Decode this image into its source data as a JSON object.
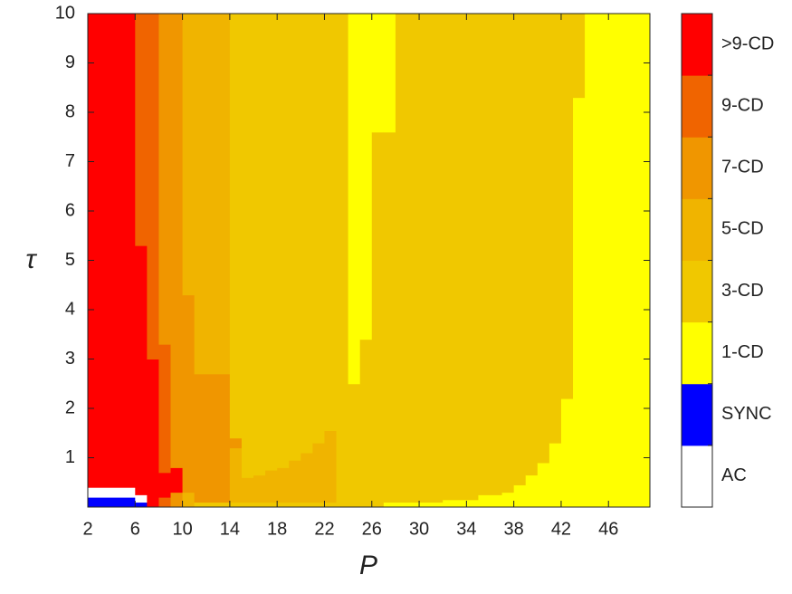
{
  "chart_data": {
    "type": "heatmap",
    "xlabel": "P",
    "ylabel": "τ",
    "xlim": [
      2,
      49.5
    ],
    "ylim": [
      0,
      10
    ],
    "xticks": [
      2,
      6,
      10,
      14,
      18,
      22,
      26,
      30,
      34,
      38,
      42,
      46
    ],
    "yticks": [
      1,
      2,
      3,
      4,
      5,
      6,
      7,
      8,
      9,
      10
    ],
    "level_names": [
      "AC",
      "SYNC",
      "1-CD",
      "3-CD",
      "5-CD",
      "7-CD",
      "9-CD",
      ">9-CD"
    ],
    "level_colors": [
      "#ffffff",
      "#0000ff",
      "#ffff00",
      "#f0c800",
      "#f0b400",
      "#f09600",
      "#f06400",
      "#ff0000"
    ],
    "columns": [
      {
        "x": [
          2,
          6
        ],
        "levels": [
          1,
          0,
          7
        ],
        "tops": [
          0.2,
          0.4,
          10
        ]
      },
      {
        "x": [
          6,
          7
        ],
        "levels": [
          1,
          0,
          7,
          6
        ],
        "tops": [
          0.1,
          0.25,
          5.3,
          10
        ]
      },
      {
        "x": [
          7,
          8
        ],
        "levels": [
          7,
          6
        ],
        "tops": [
          3.0,
          10
        ]
      },
      {
        "x": [
          8,
          9
        ],
        "levels": [
          6,
          7,
          6,
          5
        ],
        "tops": [
          0.2,
          0.7,
          3.3,
          10
        ]
      },
      {
        "x": [
          9,
          10
        ],
        "levels": [
          5,
          7,
          5
        ],
        "tops": [
          0.3,
          0.8,
          10
        ]
      },
      {
        "x": [
          10,
          11
        ],
        "levels": [
          4,
          5,
          4
        ],
        "tops": [
          0.3,
          4.3,
          10
        ]
      },
      {
        "x": [
          11,
          14
        ],
        "levels": [
          3,
          5,
          4
        ],
        "tops": [
          0.1,
          2.7,
          10
        ]
      },
      {
        "x": [
          14,
          15
        ],
        "levels": [
          3,
          4,
          5,
          3
        ],
        "tops": [
          0.1,
          1.2,
          1.4,
          10
        ]
      },
      {
        "x": [
          15,
          16
        ],
        "levels": [
          3,
          4,
          3
        ],
        "tops": [
          0.1,
          0.6,
          10
        ]
      },
      {
        "x": [
          16,
          17
        ],
        "levels": [
          3,
          4,
          3
        ],
        "tops": [
          0.1,
          0.65,
          10
        ]
      },
      {
        "x": [
          17,
          18
        ],
        "levels": [
          3,
          4,
          3
        ],
        "tops": [
          0.1,
          0.75,
          10
        ]
      },
      {
        "x": [
          18,
          19
        ],
        "levels": [
          3,
          4,
          3
        ],
        "tops": [
          0.1,
          0.8,
          10
        ]
      },
      {
        "x": [
          19,
          20
        ],
        "levels": [
          3,
          4,
          3
        ],
        "tops": [
          0.1,
          0.95,
          10
        ]
      },
      {
        "x": [
          20,
          21
        ],
        "levels": [
          3,
          4,
          3
        ],
        "tops": [
          0.1,
          1.1,
          10
        ]
      },
      {
        "x": [
          21,
          22
        ],
        "levels": [
          3,
          4,
          3
        ],
        "tops": [
          0.1,
          1.3,
          10
        ]
      },
      {
        "x": [
          22,
          23
        ],
        "levels": [
          3,
          4,
          3
        ],
        "tops": [
          0.1,
          1.55,
          10
        ]
      },
      {
        "x": [
          23,
          24
        ],
        "levels": [
          3
        ],
        "tops": [
          10
        ]
      },
      {
        "x": [
          24,
          25
        ],
        "levels": [
          3,
          2
        ],
        "tops": [
          2.5,
          10
        ]
      },
      {
        "x": [
          25,
          26
        ],
        "levels": [
          3,
          2
        ],
        "tops": [
          3.4,
          10
        ]
      },
      {
        "x": [
          26,
          27
        ],
        "levels": [
          3,
          2
        ],
        "tops": [
          7.6,
          10
        ]
      },
      {
        "x": [
          27,
          28
        ],
        "levels": [
          2,
          3,
          2
        ],
        "tops": [
          0.1,
          7.6,
          10
        ]
      },
      {
        "x": [
          28,
          32
        ],
        "levels": [
          2,
          3
        ],
        "tops": [
          0.1,
          10
        ]
      },
      {
        "x": [
          32,
          35
        ],
        "levels": [
          2,
          3
        ],
        "tops": [
          0.15,
          10
        ]
      },
      {
        "x": [
          35,
          37
        ],
        "levels": [
          2,
          3
        ],
        "tops": [
          0.25,
          10
        ]
      },
      {
        "x": [
          37,
          38
        ],
        "levels": [
          2,
          3
        ],
        "tops": [
          0.3,
          10
        ]
      },
      {
        "x": [
          38,
          39
        ],
        "levels": [
          2,
          3
        ],
        "tops": [
          0.45,
          10
        ]
      },
      {
        "x": [
          39,
          40
        ],
        "levels": [
          2,
          3
        ],
        "tops": [
          0.65,
          10
        ]
      },
      {
        "x": [
          40,
          41
        ],
        "levels": [
          2,
          3
        ],
        "tops": [
          0.9,
          10
        ]
      },
      {
        "x": [
          41,
          42
        ],
        "levels": [
          2,
          3
        ],
        "tops": [
          1.3,
          10
        ]
      },
      {
        "x": [
          42,
          43
        ],
        "levels": [
          2,
          3
        ],
        "tops": [
          2.2,
          10
        ]
      },
      {
        "x": [
          43,
          44
        ],
        "levels": [
          2,
          3
        ],
        "tops": [
          8.3,
          10
        ]
      },
      {
        "x": [
          44,
          49.5
        ],
        "levels": [
          2
        ],
        "tops": [
          10
        ]
      }
    ]
  }
}
